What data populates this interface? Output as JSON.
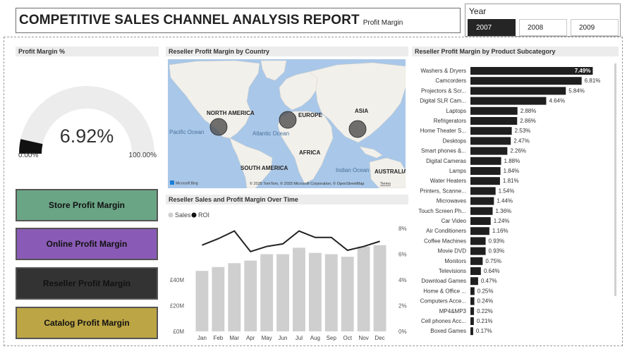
{
  "header": {
    "title": "COMPETITIVE SALES CHANNEL ANALYSIS REPORT",
    "subtitle": "Profit Margin"
  },
  "year_slicer": {
    "label": "Year",
    "options": [
      "2007",
      "2008",
      "2009"
    ],
    "selected": "2007"
  },
  "gauge": {
    "title": "Profit Margin %",
    "value": 6.92,
    "value_label": "6.92%",
    "min_label": "0.00%",
    "max_label": "100.00%",
    "min": 0,
    "max": 100
  },
  "nav_buttons": [
    {
      "label": "Store Profit Margin",
      "color": "#6aa585"
    },
    {
      "label": "Online Profit Margin",
      "color": "#8a5bb6"
    },
    {
      "label": "Reseller Profit Margin",
      "color": "#333333"
    },
    {
      "label": "Catalog Profit Margin",
      "color": "#bca544"
    }
  ],
  "map": {
    "title": "Reseller Profit Margin by Country",
    "continents": [
      "NORTH AMERICA",
      "EUROPE",
      "ASIA",
      "AFRICA",
      "SOUTH AMERICA",
      "AUSTRALIA"
    ],
    "oceans": [
      "Pacific Ocean",
      "Atlantic Ocean",
      "Indian Ocean"
    ],
    "attribution": "© 2025 TomTom, © 2025 Microsoft Corporation, © OpenStreetMap",
    "terms": "Terms",
    "logo": "Microsoft Bing"
  },
  "colors": {
    "bar_dark": "#1f1f1f",
    "bar_light": "#cfcfcf",
    "line": "#222222",
    "header_bg": "#ececec",
    "map_water": "#a9c7e8",
    "map_land": "#f2f0eb"
  },
  "chart_data": [
    {
      "type": "bar",
      "orientation": "horizontal",
      "title": "Reseller Profit Margin by Product Subcategory",
      "categories": [
        "Washers & Dryers",
        "Camcorders",
        "Projectors & Scr...",
        "Digital SLR Cam...",
        "Laptops",
        "Refrigerators",
        "Home Theater S...",
        "Desktops",
        "Smart phones &...",
        "Digital Cameras",
        "Lamps",
        "Water Heaters",
        "Printers, Scanne...",
        "Microwaves",
        "Touch Screen Ph...",
        "Car Video",
        "Air Conditioners",
        "Coffee Machines",
        "Movie DVD",
        "Monitors",
        "Televisions",
        "Download Games",
        "Home & Office ...",
        "Computers Acce...",
        "MP4&MP3",
        "Cell phones Acc...",
        "Boxed Games"
      ],
      "values": [
        7.49,
        6.81,
        5.84,
        4.64,
        2.88,
        2.86,
        2.53,
        2.47,
        2.26,
        1.88,
        1.84,
        1.81,
        1.54,
        1.44,
        1.36,
        1.24,
        1.16,
        0.93,
        0.93,
        0.75,
        0.64,
        0.47,
        0.25,
        0.24,
        0.22,
        0.21,
        0.17
      ],
      "labels": [
        "7.49%",
        "6.81%",
        "5.84%",
        "4.64%",
        "2.88%",
        "2.86%",
        "2.53%",
        "2.47%",
        "2.26%",
        "1.88%",
        "1.84%",
        "1.81%",
        "1.54%",
        "1.44%",
        "1.36%",
        "1.24%",
        "1.16%",
        "0.93%",
        "0.93%",
        "0.75%",
        "0.64%",
        "0.47%",
        "0.25%",
        "0.24%",
        "0.22%",
        "0.21%",
        "0.17%"
      ],
      "xlim": [
        0,
        7.6
      ]
    },
    {
      "type": "bar",
      "title": "Reseller Sales and Profit Margin Over Time",
      "categories": [
        "Jan",
        "Feb",
        "Mar",
        "Apr",
        "May",
        "Jun",
        "Jul",
        "Aug",
        "Sep",
        "Oct",
        "Nov",
        "Dec"
      ],
      "series": [
        {
          "name": "Sales",
          "type": "bar",
          "values": [
            47,
            50,
            53,
            55,
            60,
            60,
            65,
            61,
            60,
            58,
            66,
            67
          ],
          "unit": "M"
        },
        {
          "name": "ROI",
          "type": "line",
          "values": [
            6.7,
            7.2,
            7.8,
            6.2,
            6.6,
            6.8,
            7.8,
            7.3,
            7.3,
            6.3,
            6.6,
            7.0
          ],
          "unit": "%"
        }
      ],
      "ylim_left": [
        0,
        80
      ],
      "ylim_right": [
        0,
        8
      ],
      "yticks_left": [
        "£0M",
        "£20M",
        "£40M"
      ],
      "yticks_left_values": [
        0,
        20,
        40
      ],
      "yticks_right": [
        "0%",
        "2%",
        "4%",
        "6%",
        "8%"
      ],
      "yticks_right_values": [
        0,
        2,
        4,
        6,
        8
      ],
      "legend": "top-left"
    }
  ]
}
